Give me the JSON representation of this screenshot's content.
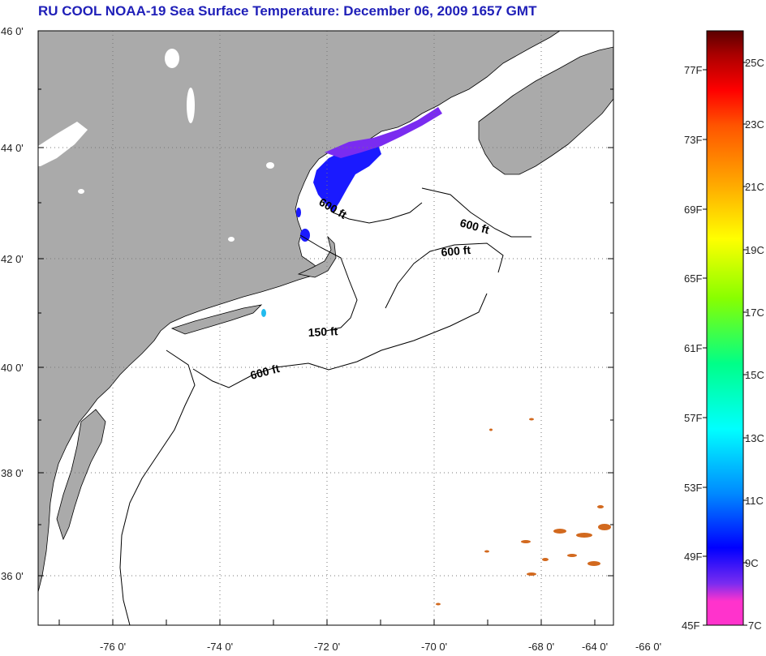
{
  "title": "RU COOL  NOAA-19  Sea Surface Temperature:  December 06, 2009 1657 GMT",
  "map": {
    "lat_labels": [
      "46 0'",
      "44 0'",
      "42 0'",
      "40 0'",
      "38 0'",
      "36 0'"
    ],
    "lon_labels": [
      "-76 0'",
      "-74 0'",
      "-72 0'",
      "-70 0'",
      "-68 0'",
      "-66 0'",
      "-64 0'"
    ],
    "land_color": "#aaaaaa",
    "water_color": "#ffffff",
    "contour_labels": [
      "600 ft",
      "600 ft",
      "600 ft",
      "150 ft",
      "600 ft"
    ]
  },
  "colorbar": {
    "fahrenheit_labels": [
      "77F",
      "73F",
      "69F",
      "65F",
      "61F",
      "57F",
      "53F",
      "49F",
      "45F"
    ],
    "celsius_labels": [
      "25C",
      "23C",
      "21C",
      "19C",
      "17C",
      "15C",
      "13C",
      "11C",
      "9C",
      "7C"
    ],
    "colors": [
      "#ff33cc",
      "#7a2cf0",
      "#0000ff",
      "#0088ff",
      "#00ffff",
      "#00ff88",
      "#88ff00",
      "#ffff00",
      "#ffaa00",
      "#ff5500",
      "#ff0000",
      "#aa0000",
      "#5a0000"
    ]
  }
}
